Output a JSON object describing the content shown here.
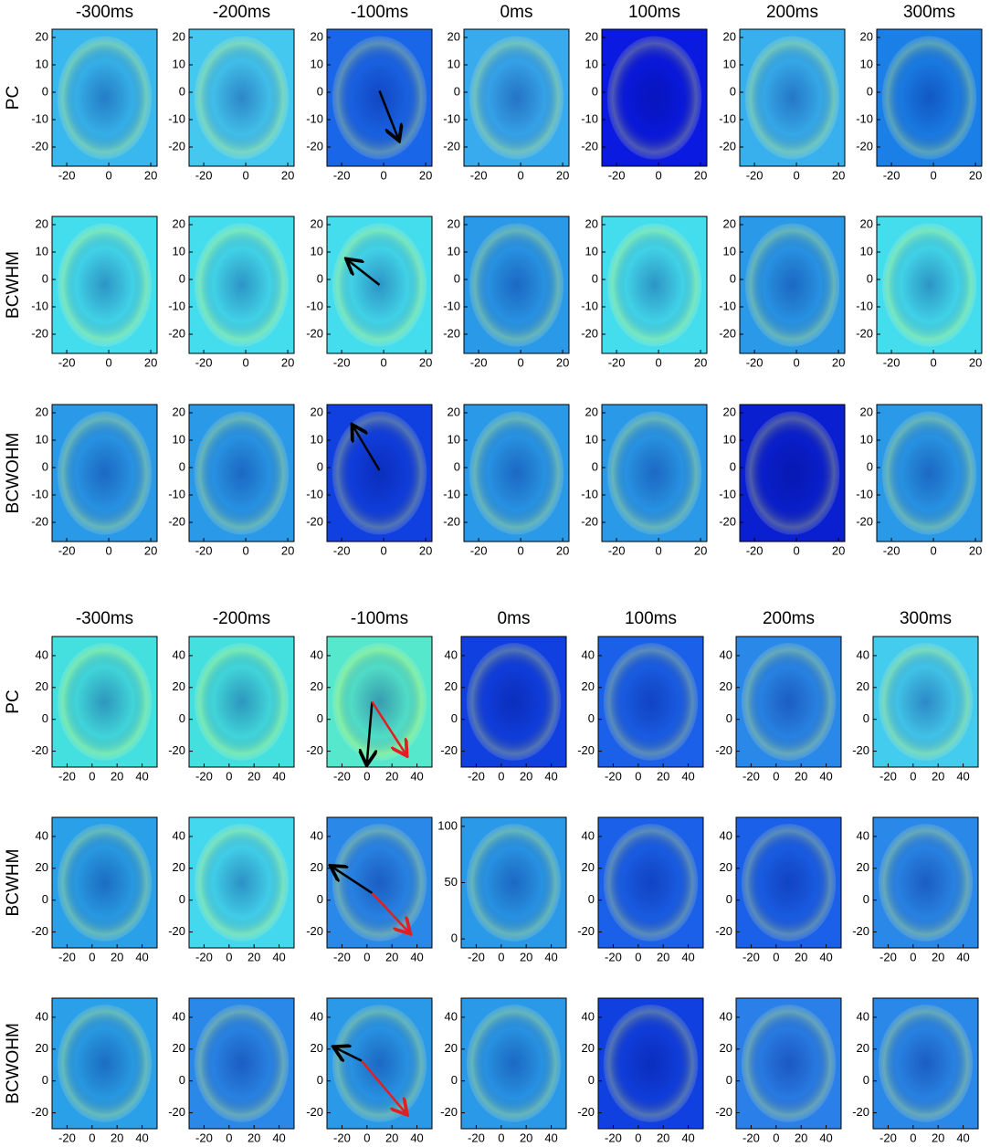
{
  "blocks": [
    {
      "columns": [
        "-300ms",
        "-200ms",
        "-100ms",
        "0ms",
        "100ms",
        "200ms",
        "300ms"
      ],
      "rows": [
        "PC",
        "BCWHM",
        "BCWOHM"
      ],
      "xlim": [
        -27,
        23
      ],
      "ylim": [
        -27,
        23
      ],
      "xticks": [
        -20,
        0,
        20
      ],
      "yticks": [
        -20,
        -10,
        0,
        10,
        20
      ],
      "panels": [
        [
          {
            "background": "#38b8ee"
          },
          {
            "background": "#44c8f0"
          },
          {
            "background": "#1a66e8"
          },
          {
            "background": "#38aaee"
          },
          {
            "background": "#0a1ae0"
          },
          {
            "background": "#38b0ee"
          },
          {
            "background": "#1a80e8"
          }
        ],
        [
          {
            "background": "#44ddee"
          },
          {
            "background": "#44ddee"
          },
          {
            "background": "#44ddee"
          },
          {
            "background": "#2a99e8"
          },
          {
            "background": "#44ddee"
          },
          {
            "background": "#2a99e8"
          },
          {
            "background": "#44ddee"
          }
        ],
        [
          {
            "background": "#2a99e8"
          },
          {
            "background": "#2a99e8"
          },
          {
            "background": "#1040e0"
          },
          {
            "background": "#2a99e8"
          },
          {
            "background": "#2a99e8"
          },
          {
            "background": "#0a20d0"
          },
          {
            "background": "#2a99e8"
          }
        ]
      ]
    },
    {
      "columns": [
        "-300ms",
        "-200ms",
        "-100ms",
        "0ms",
        "100ms",
        "200ms",
        "300ms"
      ],
      "rows": [
        "PC",
        "BCWHM",
        "BCWOHM"
      ],
      "xlim": [
        -32,
        52
      ],
      "ylim": [
        -30,
        52
      ],
      "xticks": [
        -20,
        0,
        20,
        40
      ],
      "yticks": [
        -20,
        0,
        20,
        40
      ],
      "panels": [
        [
          {
            "background": "#44e0e0"
          },
          {
            "background": "#44e0e0"
          },
          {
            "background": "#55e8cc"
          },
          {
            "background": "#1040e0"
          },
          {
            "background": "#1a60e8"
          },
          {
            "background": "#2a88e8"
          },
          {
            "background": "#44ccee"
          }
        ],
        [
          {
            "background": "#2aa0e8"
          },
          {
            "background": "#44d8ee"
          },
          {
            "background": "#2a88e8"
          },
          {
            "background": "#2a99e8",
            "ylim": [
              -8,
              108
            ],
            "yticks": [
              0,
              50,
              100
            ]
          },
          {
            "background": "#1a60e8"
          },
          {
            "background": "#1a60e8"
          },
          {
            "background": "#2a88e8"
          }
        ],
        [
          {
            "background": "#2aa0e8"
          },
          {
            "background": "#2a88e8"
          },
          {
            "background": "#2a99e8"
          },
          {
            "background": "#2a99e8"
          },
          {
            "background": "#1040e0"
          },
          {
            "background": "#2a80e8"
          },
          {
            "background": "#2a88e8"
          }
        ]
      ]
    }
  ]
}
